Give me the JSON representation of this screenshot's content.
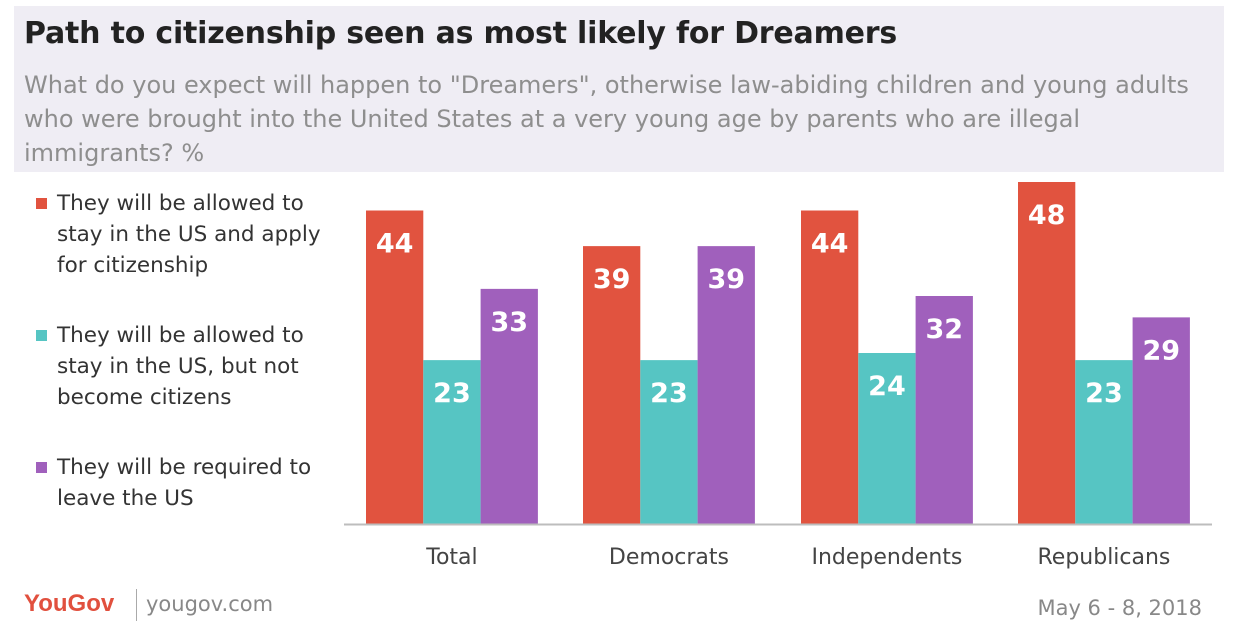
{
  "header": {
    "title": "Path to citizenship seen as most likely for Dreamers",
    "subtitle": "What do you expect will happen to \"Dreamers\", otherwise law-abiding children and young adults who were brought into the United States at a very young age by parents who are illegal immigrants? %"
  },
  "colors": {
    "background_header": "#efedf4",
    "series": [
      "#e1533f",
      "#56c5c3",
      "#a060bc"
    ]
  },
  "chart_data": {
    "type": "bar",
    "title": "Path to citizenship seen as most likely for Dreamers",
    "categories": [
      "Total",
      "Democrats",
      "Independents",
      "Republicans"
    ],
    "series": [
      {
        "name": "They will be allowed to stay in the US and apply for citizenship",
        "values": [
          44,
          39,
          44,
          48
        ]
      },
      {
        "name": "They will be allowed to stay in the US, but not become citizens",
        "values": [
          23,
          23,
          24,
          23
        ]
      },
      {
        "name": "They will be required to leave the US",
        "values": [
          33,
          39,
          32,
          29
        ]
      }
    ],
    "ylim": [
      0,
      48
    ],
    "grid": false,
    "legend_position": "left",
    "data_labels": true
  },
  "footer": {
    "brand": "YouGov",
    "url": "yougov.com",
    "date": "May 6 - 8, 2018"
  }
}
